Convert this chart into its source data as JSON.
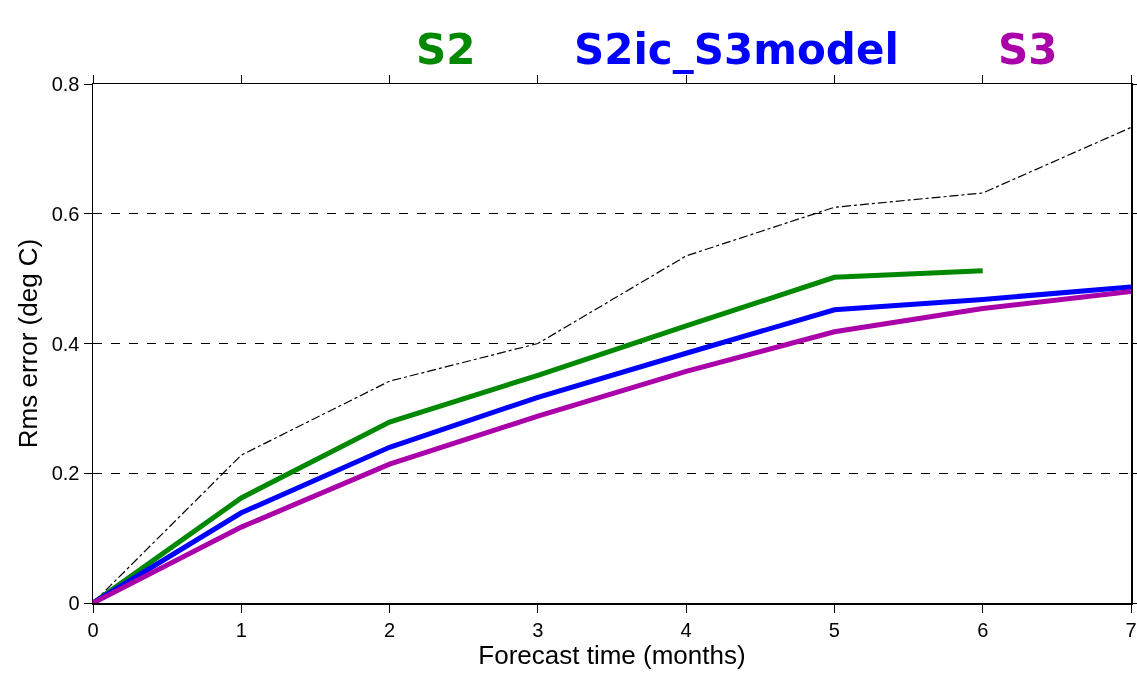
{
  "chart_data": {
    "type": "line",
    "xlabel": "Forecast time (months)",
    "ylabel": "Rms error (deg C)",
    "x": [
      0,
      1,
      2,
      3,
      4,
      5,
      6,
      7
    ],
    "xlim": [
      0,
      7
    ],
    "xticks": [
      0,
      1,
      2,
      3,
      4,
      5,
      6,
      7
    ],
    "ylim": [
      0,
      0.8
    ],
    "yticks": [
      0,
      0.2,
      0.4,
      0.6,
      0.8
    ],
    "grid": "y",
    "legend": "top",
    "marker": "none",
    "series": [
      {
        "color": "#000000",
        "line_style": "dashed",
        "values": [
          0,
          0.228,
          0.342,
          0.4,
          0.535,
          0.61,
          0.632,
          0.733
        ]
      },
      {
        "name": "S2",
        "color": "#008800",
        "values": [
          0,
          0.162,
          0.279,
          0.351,
          0.427,
          0.502,
          0.512,
          null
        ]
      },
      {
        "name": "S2ic_S3model",
        "color": "#0000ff",
        "values": [
          0,
          0.139,
          0.24,
          0.317,
          0.385,
          0.452,
          0.468,
          0.487
        ]
      },
      {
        "name": "S3",
        "color": "#aa00aa",
        "values": [
          0,
          0.117,
          0.214,
          0.288,
          0.357,
          0.418,
          0.454,
          0.48
        ]
      }
    ]
  }
}
